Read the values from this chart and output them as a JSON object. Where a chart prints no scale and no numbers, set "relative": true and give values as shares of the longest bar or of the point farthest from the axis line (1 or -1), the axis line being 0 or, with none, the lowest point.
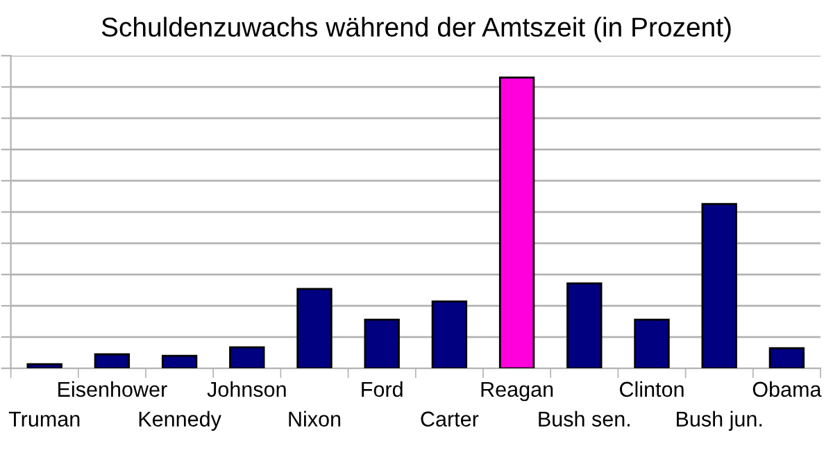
{
  "chart_data": {
    "type": "bar",
    "title": "Schuldenzuwachs während der Amtszeit (in Prozent)",
    "categories": [
      "Truman",
      "Eisenhower",
      "Kennedy",
      "Johnson",
      "Nixon",
      "Ford",
      "Carter",
      "Reagan",
      "Bush sen.",
      "Clinton",
      "Bush jun.",
      "Obama"
    ],
    "values": [
      0.014,
      0.048,
      0.043,
      0.072,
      0.273,
      0.167,
      0.23,
      1,
      0.292,
      0.167,
      0.565,
      0.069
    ],
    "colors": [
      "#000080",
      "#000080",
      "#000080",
      "#000080",
      "#000080",
      "#000080",
      "#000080",
      "#ff00dd",
      "#000080",
      "#000080",
      "#000080",
      "#000080"
    ],
    "relative": true,
    "grid": "y"
  }
}
